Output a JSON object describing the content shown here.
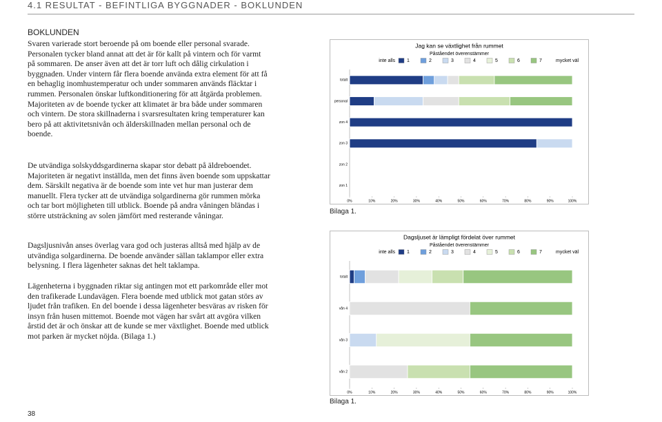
{
  "header": {
    "title": "4.1 RESULTAT - BEFINTLIGA BYGGNADER - BOKLUNDEN"
  },
  "body": {
    "heading": "BOKLUNDEN",
    "paragraphs": [
      "Svaren varierade stort beroende på om boende eller personal svarade. Personalen tycker bland annat att det är för kallt på vintern och för varmt på sommaren. De anser även att det är torr luft och dålig cirkulation i byggnaden. Under vintern får flera boende använda extra element för att få en behaglig inomhustemperatur och under sommaren används fläcktar i rummen. Personalen önskar luftkonditionering för att åtgärda problemen. Majoriteten av de boende tycker att klimatet är bra både under sommaren och vintern. De stora skillnaderna i svarsresultaten kring temperaturer kan bero på att aktivitetsnivån och älderskillnaden mellan personal och de boende.",
      "De utvändiga solskyddsgardinerna skapar stor debatt på äldreboendet. Majoriteten är negativt inställda, men det finns även boende som uppskattar dem. Särskilt negativa är de boende som inte vet hur man justerar dem manuellt. Flera tycker att de utvändiga solgardinerna gör rummen mörka och tar bort möjligheten till utblick. Boende på andra våningen bländas i större utsträckning av solen jämfört med resterande våningar.",
      "Dagsljusnivån anses överlag vara god och justeras alltså med hjälp av de utvändiga solgardinerna. De boende använder sällan taklampor eller extra belysning. I flera lägenheter saknas det helt taklampa.",
      "Lägenheterna i byggnaden riktar sig antingen mot ett parkområde eller mot den trafikerade Lundavägen. Flera boende med utblick mot gatan störs av ljudet från trafiken. En del boende i dessa lägenheter besväras av risken för insyn från husen mittemot. Boende mot vägen har svårt att avgöra vilken årstid det är och önskar att de kunde se mer växtlighet. Boende med utblick mot parken är mycket nöjda. (Bilaga 1.)"
    ]
  },
  "figures": [
    {
      "chart_data": {
        "type": "stacked_bar_horizontal",
        "title": "Jag kan se växtlighet från rummet",
        "subtitle": "Påståendet överenstämmer",
        "legend_low": "inte alls",
        "legend_high": "mycket väl",
        "categories": [
          "totalt",
          "personal",
          "zon 4",
          "zon 3",
          "zon 2",
          "zon 1"
        ],
        "series": [
          {
            "name": "1",
            "color": "#1f3d85",
            "values": [
              33,
              11,
              100,
              84,
              0,
              0
            ]
          },
          {
            "name": "2",
            "color": "#6f9fdc",
            "values": [
              5,
              0,
              0,
              0,
              0,
              0
            ]
          },
          {
            "name": "3",
            "color": "#c9daf0",
            "values": [
              6,
              22,
              0,
              16,
              0,
              0
            ]
          },
          {
            "name": "4",
            "color": "#e2e2e2",
            "values": [
              5,
              16,
              0,
              0,
              0,
              0
            ]
          },
          {
            "name": "5",
            "color": "#e6f0d9",
            "values": [
              0,
              0,
              0,
              0,
              0,
              0
            ]
          },
          {
            "name": "6",
            "color": "#c9e0b0",
            "values": [
              16,
              23,
              0,
              0,
              0,
              0
            ]
          },
          {
            "name": "7",
            "color": "#98c680",
            "values": [
              35,
              28,
              0,
              0,
              0,
              0
            ]
          }
        ],
        "xlim": [
          0,
          100
        ],
        "xticks": [
          {
            "value": 0,
            "label": "0%"
          },
          {
            "value": 10,
            "label": "10%"
          },
          {
            "value": 20,
            "label": "20%"
          },
          {
            "value": 30,
            "label": "30%"
          },
          {
            "value": 40,
            "label": "40%"
          },
          {
            "value": 50,
            "label": "50%"
          },
          {
            "value": 60,
            "label": "60%"
          },
          {
            "value": 70,
            "label": "70%"
          },
          {
            "value": 80,
            "label": "80%"
          },
          {
            "value": 90,
            "label": "90%"
          },
          {
            "value": 100,
            "label": "100%"
          }
        ]
      },
      "caption": "Bilaga 1."
    },
    {
      "chart_data": {
        "type": "stacked_bar_horizontal",
        "title": "Dagsljuset är lämpligt fördelat över rummet",
        "subtitle": "Påståendet överenstämmer",
        "legend_low": "inte alls",
        "legend_high": "mycket väl",
        "categories": [
          "totalt",
          "vån 4",
          "vån 3",
          "vån 2"
        ],
        "series": [
          {
            "name": "1",
            "color": "#1f3d85",
            "values": [
              2,
              0,
              0,
              0
            ]
          },
          {
            "name": "2",
            "color": "#6f9fdc",
            "values": [
              5,
              0,
              0,
              0
            ]
          },
          {
            "name": "3",
            "color": "#c9daf0",
            "values": [
              0,
              0,
              12,
              0
            ]
          },
          {
            "name": "4",
            "color": "#e2e2e2",
            "values": [
              15,
              54,
              0,
              26
            ]
          },
          {
            "name": "5",
            "color": "#e6f0d9",
            "values": [
              15,
              0,
              42,
              0
            ]
          },
          {
            "name": "6",
            "color": "#c9e0b0",
            "values": [
              14,
              0,
              0,
              28
            ]
          },
          {
            "name": "7",
            "color": "#98c680",
            "values": [
              49,
              46,
              46,
              46
            ]
          }
        ],
        "xlim": [
          0,
          100
        ],
        "xticks": [
          {
            "value": 0,
            "label": "0%"
          },
          {
            "value": 10,
            "label": "10%"
          },
          {
            "value": 20,
            "label": "20%"
          },
          {
            "value": 30,
            "label": "30%"
          },
          {
            "value": 40,
            "label": "40%"
          },
          {
            "value": 50,
            "label": "50%"
          },
          {
            "value": 60,
            "label": "60%"
          },
          {
            "value": 70,
            "label": "70%"
          },
          {
            "value": 80,
            "label": "80%"
          },
          {
            "value": 90,
            "label": "90%"
          },
          {
            "value": 100,
            "label": "100%"
          }
        ]
      },
      "caption": "Bilaga 1."
    }
  ],
  "page_number": "38"
}
